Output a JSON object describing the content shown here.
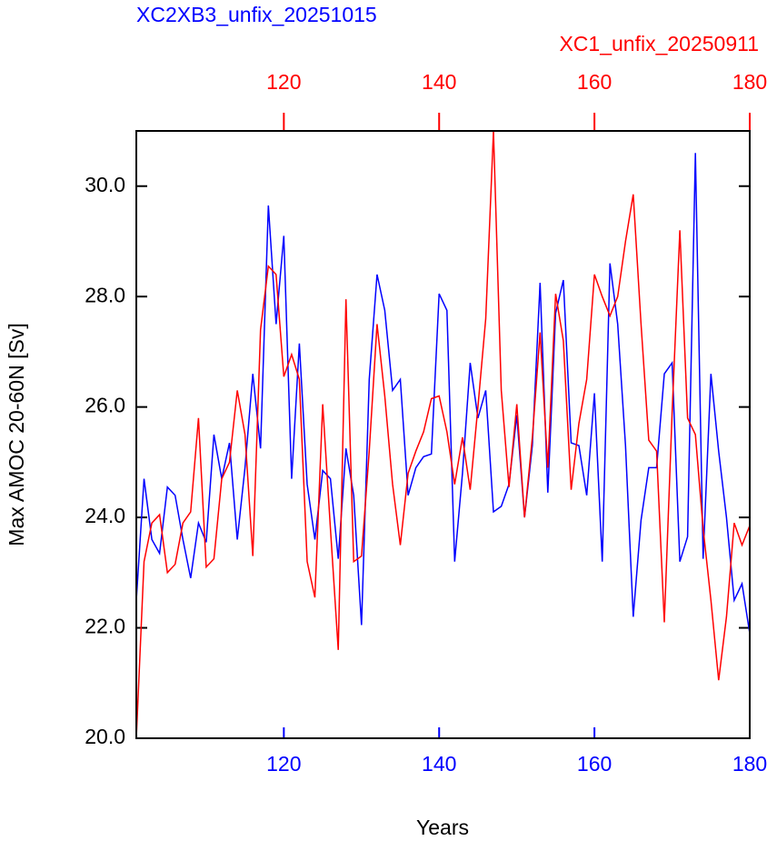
{
  "chart_data": {
    "type": "line",
    "xlabel": "Years",
    "ylabel": "Max AMOC 20-60N [Sv]",
    "x": [
      101,
      102,
      103,
      104,
      105,
      106,
      107,
      108,
      109,
      110,
      111,
      112,
      113,
      114,
      115,
      116,
      117,
      118,
      119,
      120,
      121,
      122,
      123,
      124,
      125,
      126,
      127,
      128,
      129,
      130,
      131,
      132,
      133,
      134,
      135,
      136,
      137,
      138,
      139,
      140,
      141,
      142,
      143,
      144,
      145,
      146,
      147,
      148,
      149,
      150,
      151,
      152,
      153,
      154,
      155,
      156,
      157,
      158,
      159,
      160,
      161,
      162,
      163,
      164,
      165,
      166,
      167,
      168,
      169,
      170,
      171,
      172,
      173,
      174,
      175,
      176,
      177,
      178,
      179,
      180
    ],
    "xlim": [
      101,
      180
    ],
    "xticks": [
      120,
      140,
      160,
      180
    ],
    "xtick_color": "#0000ff",
    "x2lim": [
      101,
      180
    ],
    "x2ticks": [
      120,
      140,
      160,
      180
    ],
    "x2tick_color": "#ff0000",
    "ylim": [
      20,
      31
    ],
    "yticks": [
      {
        "value": 20,
        "label": "20.0"
      },
      {
        "value": 22,
        "label": "22.0"
      },
      {
        "value": 24,
        "label": "24.0"
      },
      {
        "value": 26,
        "label": "26.0"
      },
      {
        "value": 28,
        "label": "28.0"
      },
      {
        "value": 30,
        "label": "30.0"
      }
    ],
    "grid": false,
    "series": [
      {
        "name": "XC2XB3_unfix_20251015",
        "color": "#0000ff",
        "axis": "x",
        "values": [
          22.5,
          24.7,
          23.6,
          23.35,
          24.55,
          24.4,
          23.6,
          22.9,
          23.9,
          23.55,
          25.5,
          24.7,
          25.35,
          23.6,
          24.9,
          26.6,
          25.25,
          29.65,
          27.5,
          29.1,
          24.7,
          27.15,
          24.6,
          23.6,
          24.85,
          24.7,
          23.25,
          25.25,
          24.4,
          22.05,
          26.5,
          28.4,
          27.75,
          26.3,
          26.5,
          24.4,
          24.9,
          25.1,
          25.15,
          28.05,
          27.75,
          23.2,
          24.8,
          26.8,
          25.8,
          26.3,
          24.1,
          24.2,
          24.6,
          25.85,
          24.0,
          25.3,
          28.25,
          24.45,
          27.7,
          28.3,
          25.35,
          25.3,
          24.4,
          26.25,
          23.2,
          28.6,
          27.5,
          25.3,
          22.2,
          23.95,
          24.9,
          24.9,
          26.6,
          26.8,
          23.2,
          23.65,
          30.6,
          23.25,
          26.6,
          25.2,
          24.0,
          22.5,
          22.8,
          21.9
        ]
      },
      {
        "name": "XC1_unfix_20250911",
        "color": "#ff0000",
        "axis": "x2",
        "values": [
          20.0,
          23.2,
          23.9,
          24.05,
          23.0,
          23.15,
          23.9,
          24.1,
          25.8,
          23.1,
          23.25,
          24.7,
          25.0,
          26.3,
          25.5,
          23.3,
          27.4,
          28.55,
          28.4,
          26.55,
          26.95,
          26.5,
          23.2,
          22.55,
          26.05,
          23.8,
          21.6,
          27.95,
          23.2,
          23.3,
          25.2,
          27.5,
          26.2,
          24.6,
          23.5,
          24.8,
          25.2,
          25.55,
          26.15,
          26.2,
          25.55,
          24.6,
          25.45,
          24.5,
          26.0,
          27.6,
          31.0,
          26.3,
          24.55,
          26.05,
          24.0,
          25.45,
          27.35,
          24.9,
          28.05,
          27.2,
          24.5,
          25.7,
          26.5,
          28.4,
          28.0,
          27.65,
          28.0,
          29.0,
          29.85,
          27.5,
          25.4,
          25.2,
          22.1,
          25.9,
          29.2,
          25.8,
          25.5,
          23.8,
          22.5,
          21.05,
          22.2,
          23.9,
          23.5,
          23.85
        ]
      }
    ]
  }
}
